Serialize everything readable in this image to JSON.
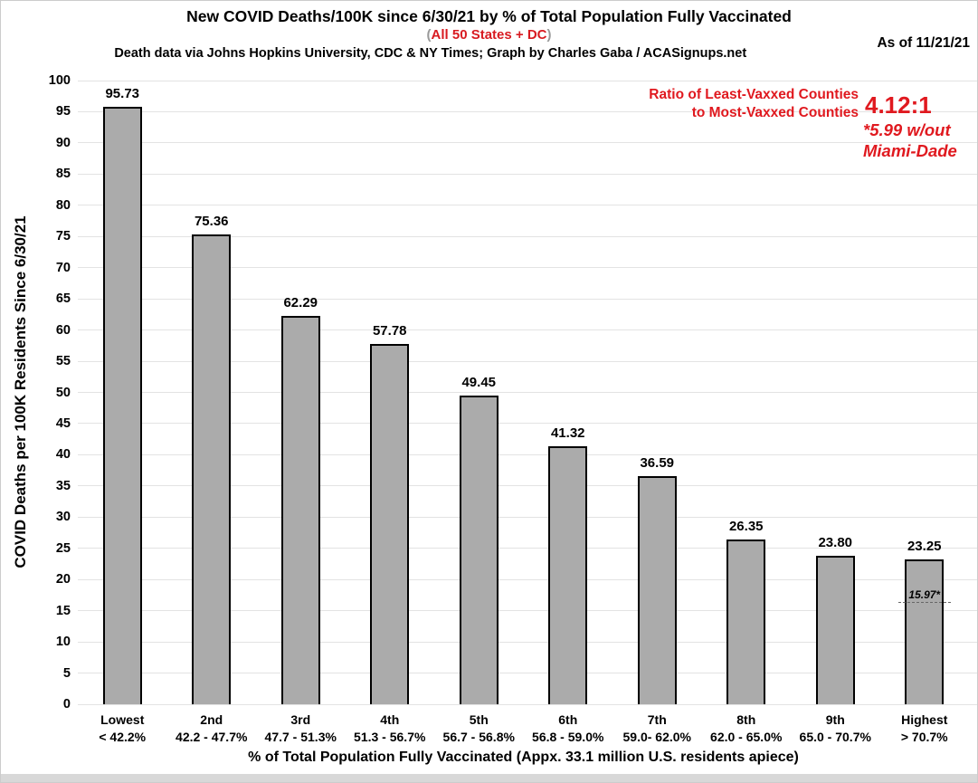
{
  "header": {
    "title": "New COVID Deaths/100K since 6/30/21 by % of Total Population Fully Vaccinated",
    "subtitle_open_paren": "(",
    "subtitle_text": "All 50 States + DC",
    "subtitle_close_paren": ")",
    "credit": "Death data via Johns Hopkins University, CDC & NY Times; Graph by Charles Gaba / ACASignups.net",
    "as_of": "As of 11/21/21"
  },
  "annotation": {
    "ratio_label_line1": "Ratio of Least-Vaxxed Counties",
    "ratio_label_line2": "to Most-Vaxxed Counties",
    "ratio_value": "4.12:1",
    "ratio_note_line1": "*5.99 w/out",
    "ratio_note_line2": "Miami-Dade",
    "color": "#e0191f"
  },
  "colors": {
    "bar_fill": "#ababab",
    "bar_border": "#000000",
    "gridline": "#e3e3e3",
    "accent_red": "#e0191f",
    "paren_gray": "#999999",
    "bottom_strip": "#d8d8d8"
  },
  "chart_data": {
    "type": "bar",
    "title": "New COVID Deaths/100K since 6/30/21 by % of Total Population Fully Vaccinated",
    "subtitle": "(All 50 States + DC)",
    "xlabel": "% of Total Population Fully Vaccinated (Appx. 33.1 million U.S. residents apiece)",
    "ylabel": "COVID Deaths per 100K Residents Since 6/30/21",
    "ylim": [
      0,
      100
    ],
    "ytick_step": 5,
    "grid": true,
    "legend": "none",
    "bar_color": "#ababab",
    "categories": [
      "Lowest",
      "2nd",
      "3rd",
      "4th",
      "5th",
      "6th",
      "7th",
      "8th",
      "9th",
      "Highest"
    ],
    "category_ranges": [
      "< 42.2%",
      "42.2 - 47.7%",
      "47.7 - 51.3%",
      "51.3 - 56.7%",
      "56.7 - 56.8%",
      "56.8 - 59.0%",
      "59.0- 62.0%",
      "62.0 - 65.0%",
      "65.0 - 70.7%",
      "> 70.7%"
    ],
    "values": [
      95.73,
      75.36,
      62.29,
      57.78,
      49.45,
      41.32,
      36.59,
      26.35,
      23.8,
      23.25
    ],
    "value_labels": [
      "95.73",
      "75.36",
      "62.29",
      "57.78",
      "49.45",
      "41.32",
      "36.59",
      "26.35",
      "23.80",
      "23.25"
    ],
    "inner_annotation": {
      "bar_index": 9,
      "value": 15.97,
      "label": "15.97*"
    }
  }
}
